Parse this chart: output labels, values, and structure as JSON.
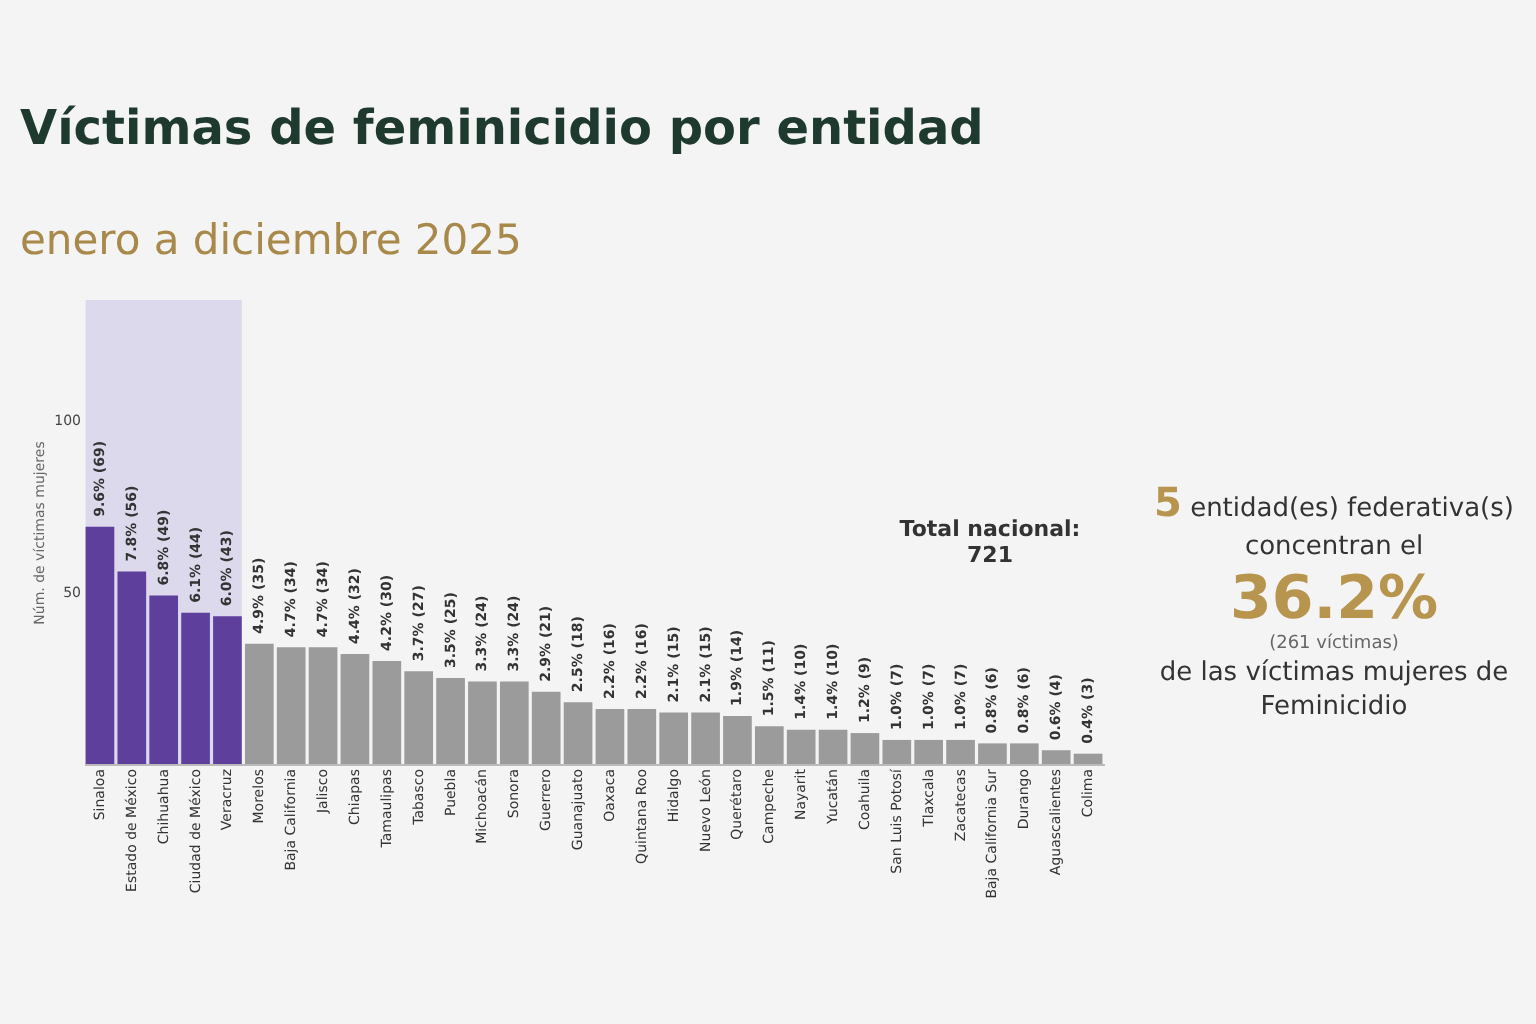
{
  "chart_data": {
    "type": "bar",
    "title": "Víctimas de feminicidio por entidad",
    "subtitle": "enero a diciembre 2025",
    "ylabel": "Núm. de víctimas mujeres",
    "categories": [
      "Sinaloa",
      "Estado de México",
      "Chihuahua",
      "Ciudad de México",
      "Veracruz",
      "Morelos",
      "Baja California",
      "Jalisco",
      "Chiapas",
      "Tamaulipas",
      "Tabasco",
      "Puebla",
      "Michoacán",
      "Sonora",
      "Guerrero",
      "Guanajuato",
      "Oaxaca",
      "Quintana Roo",
      "Hidalgo",
      "Nuevo León",
      "Querétaro",
      "Campeche",
      "Nayarit",
      "Yucatán",
      "Coahuila",
      "San Luis Potosí",
      "Tlaxcala",
      "Zacatecas",
      "Baja California Sur",
      "Durango",
      "Aguascalientes",
      "Colima"
    ],
    "values": [
      69,
      56,
      49,
      44,
      43,
      35,
      34,
      34,
      32,
      30,
      27,
      25,
      24,
      24,
      21,
      18,
      16,
      16,
      15,
      15,
      14,
      11,
      10,
      10,
      9,
      7,
      7,
      7,
      6,
      6,
      4,
      3
    ],
    "value_labels": [
      "9.6% (69)",
      "7.8% (56)",
      "6.8% (49)",
      "6.1% (44)",
      "6.0% (43)",
      "4.9% (35)",
      "4.7% (34)",
      "4.7% (34)",
      "4.4% (32)",
      "4.2% (30)",
      "3.7% (27)",
      "3.5% (25)",
      "3.3% (24)",
      "3.3% (24)",
      "2.9% (21)",
      "2.5% (18)",
      "2.2% (16)",
      "2.2% (16)",
      "2.1% (15)",
      "2.1% (15)",
      "1.9% (14)",
      "1.5% (11)",
      "1.4% (10)",
      "1.4% (10)",
      "1.2% (9)",
      "1.0% (7)",
      "1.0% (7)",
      "1.0% (7)",
      "0.8% (6)",
      "0.8% (6)",
      "0.6% (4)",
      "0.4% (3)"
    ],
    "colors": [
      "#5e3f9c",
      "#5e3f9c",
      "#5e3f9c",
      "#5e3f9c",
      "#5e3f9c",
      "#9b9b9b",
      "#9b9b9b",
      "#9b9b9b",
      "#9b9b9b",
      "#9b9b9b",
      "#9b9b9b",
      "#9b9b9b",
      "#9b9b9b",
      "#9b9b9b",
      "#9b9b9b",
      "#9b9b9b",
      "#9b9b9b",
      "#9b9b9b",
      "#9b9b9b",
      "#9b9b9b",
      "#9b9b9b",
      "#9b9b9b",
      "#9b9b9b",
      "#9b9b9b",
      "#9b9b9b",
      "#9b9b9b",
      "#9b9b9b",
      "#9b9b9b",
      "#9b9b9b",
      "#9b9b9b",
      "#9b9b9b",
      "#9b9b9b"
    ],
    "ylim": [
      0,
      135
    ],
    "yticks": [
      50,
      100
    ],
    "bands": [
      {
        "axis": "x",
        "from": "Sinaloa",
        "to": "Veracruz",
        "color": "#dcd9ec"
      }
    ],
    "annotations": [
      "Total nacional:",
      "721",
      "5",
      "entidad(es) federativa(s)",
      "concentran el",
      "36.2%",
      "(261 víctimas)",
      "de las víctimas mujeres de",
      "Feminicidio"
    ],
    "grid": false
  }
}
